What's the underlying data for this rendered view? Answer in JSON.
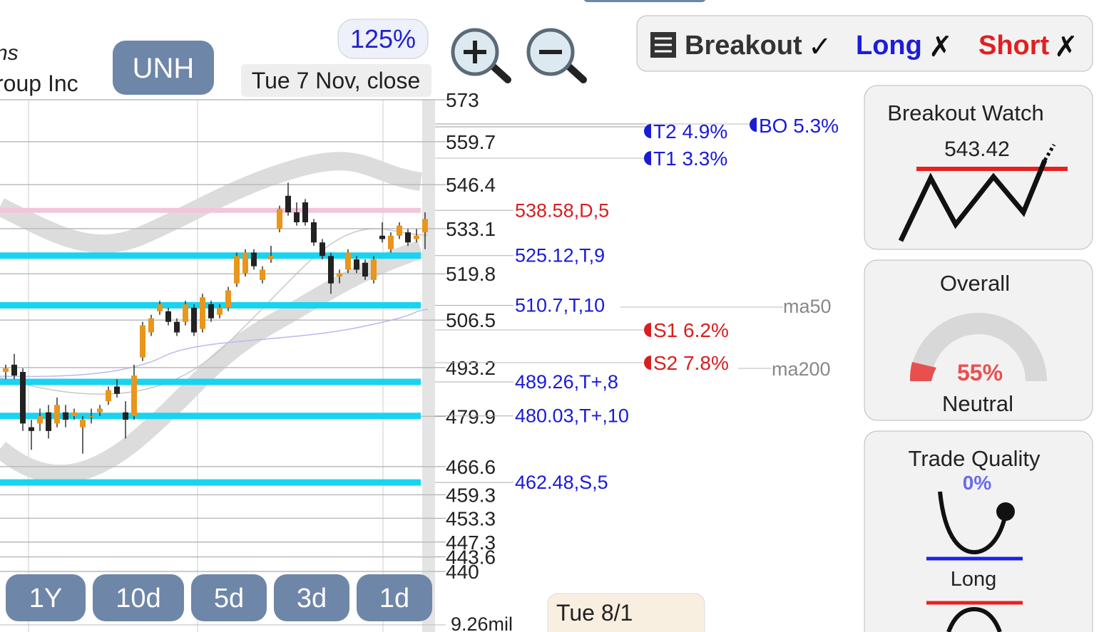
{
  "header": {
    "name_line1": "ns",
    "name_line2": "roup Inc",
    "symbol": "UNH",
    "zoom": "125%",
    "date": "Tue 7 Nov, close"
  },
  "signals": {
    "breakout": "Breakout",
    "breakout_mark": "✓",
    "long": "Long",
    "long_mark": "✗",
    "short": "Short",
    "short_mark": "✗"
  },
  "chart_data": {
    "type": "candlestick",
    "log_scale": true,
    "grid": true,
    "ylim": [
      440,
      573
    ],
    "yticks": [
      573,
      559.7,
      546.4,
      533.1,
      519.8,
      506.5,
      493.2,
      479.9,
      466.6,
      459.3,
      453.3,
      447.3,
      443.6,
      440
    ],
    "open": [
      492,
      494,
      492,
      477,
      478,
      481,
      478,
      481,
      480,
      477,
      480,
      481,
      484,
      488,
      481,
      480,
      496,
      503,
      509,
      509,
      506,
      506,
      510,
      504,
      511,
      508,
      510,
      517,
      520,
      526,
      518,
      524,
      533,
      543,
      538,
      541,
      535,
      529,
      525,
      519,
      521,
      524,
      523,
      518,
      531,
      527,
      531,
      532,
      530,
      532
    ],
    "high": [
      494,
      497,
      493,
      479,
      482,
      483,
      485,
      483,
      482,
      480,
      482,
      483,
      488,
      490,
      484,
      494,
      506,
      508,
      512,
      510,
      507,
      512,
      511,
      514,
      512,
      511,
      516,
      526,
      527,
      527,
      522,
      528,
      540,
      547,
      541,
      542,
      536,
      530,
      526,
      521,
      527,
      525,
      524,
      525,
      535,
      532,
      535,
      533,
      533,
      538
    ],
    "low": [
      490,
      490,
      476,
      471,
      476,
      474,
      477,
      477,
      479,
      470,
      478,
      480,
      483,
      485,
      474,
      479,
      495,
      502,
      508,
      505,
      502,
      505,
      502,
      503,
      506,
      507,
      509,
      516,
      519,
      521,
      517,
      523,
      532,
      537,
      534,
      534,
      528,
      524,
      514,
      517,
      520,
      520,
      518,
      517,
      529,
      526,
      530,
      528,
      529,
      527
    ],
    "close": [
      493,
      491,
      478,
      476,
      480,
      476,
      483,
      479,
      481,
      479,
      480,
      482,
      487,
      486,
      479,
      491,
      505,
      507,
      511,
      506,
      503,
      511,
      503,
      513,
      507,
      510,
      515,
      525,
      526,
      522,
      521,
      525,
      539,
      538,
      535,
      535,
      529,
      525,
      517,
      520,
      526,
      521,
      519,
      524,
      530,
      531,
      534,
      529,
      531,
      536
    ],
    "up_color": "#e8961c",
    "down_color": "#222222",
    "levels": [
      {
        "value": 538.58,
        "label": "538.58,D,5",
        "color": "#d81e1e",
        "band": "#f0c6dc"
      },
      {
        "value": 525.12,
        "label": "525.12,T,9",
        "color": "#1a1ad8",
        "band": "#19d4f0"
      },
      {
        "value": 510.7,
        "label": "510.7,T,10",
        "color": "#1a1ad8",
        "band": "#19d4f0"
      },
      {
        "value": 489.26,
        "label": "489.26,T+,8",
        "color": "#1a1ad8",
        "band": "#19d4f0"
      },
      {
        "value": 480.03,
        "label": "480.03,T+,10",
        "color": "#1a1ad8",
        "band": "#19d4f0"
      },
      {
        "value": 462.48,
        "label": "462.48,S,5",
        "color": "#1a1ad8",
        "band": "#19d4f0"
      }
    ]
  },
  "targets": {
    "t2": "T2 4.9%",
    "t1": "T1 3.3%",
    "bo": "BO 5.3%",
    "s1": "S1 6.2%",
    "s2": "S2 7.8%",
    "ma50": "ma50",
    "ma200": "ma200"
  },
  "periods": [
    "1Y",
    "10d",
    "5d",
    "3d",
    "1d"
  ],
  "volume": "9.26mil",
  "hover_date": "Tue 8/1",
  "cards": {
    "breakout_watch": {
      "title": "Breakout Watch",
      "price": "543.42"
    },
    "overall": {
      "title": "Overall",
      "score": "55%",
      "rating": "Neutral"
    },
    "trade_quality": {
      "title": "Trade Quality",
      "score": "0%",
      "side": "Long"
    }
  }
}
